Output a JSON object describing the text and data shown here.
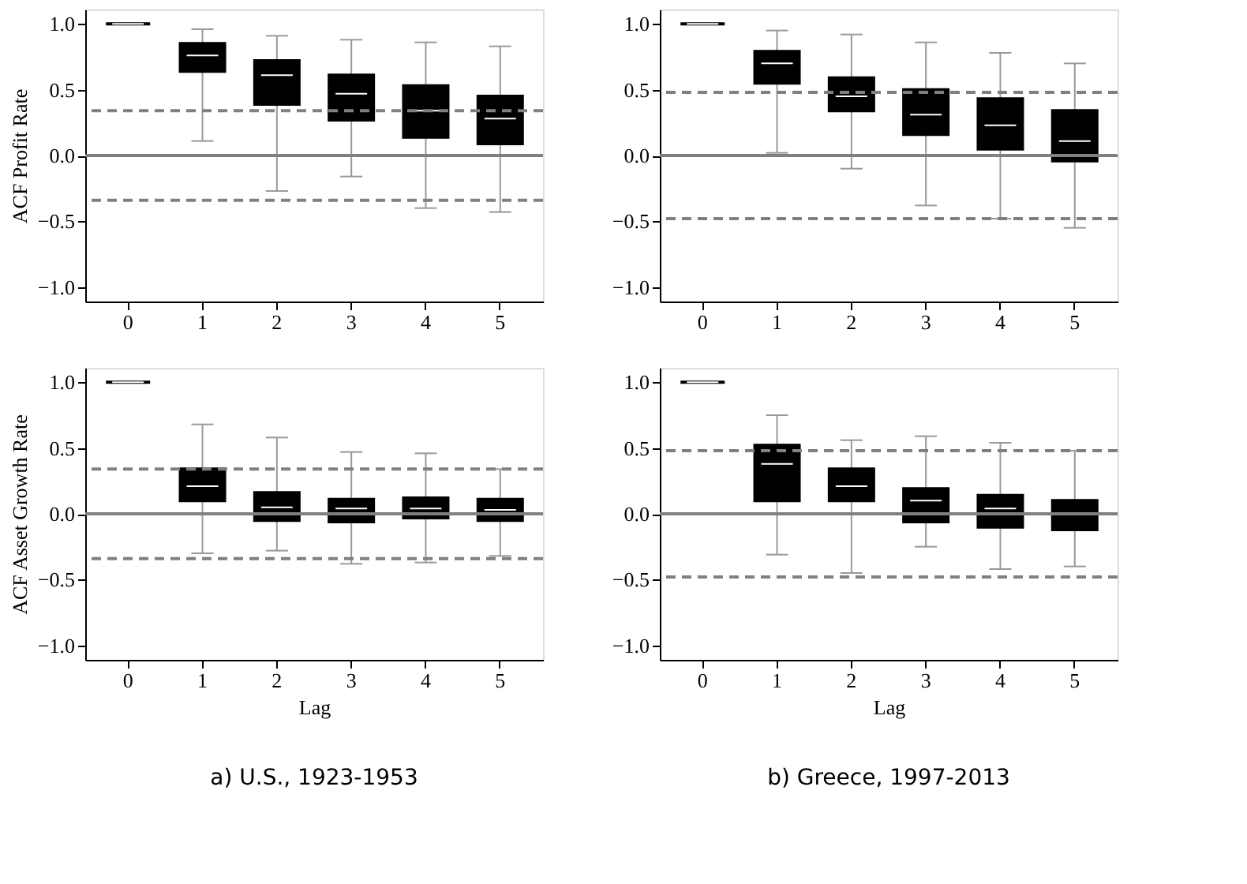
{
  "chart_data": [
    {
      "type": "box",
      "ylabel": "ACF Profit Rate",
      "categories": [
        "0",
        "1",
        "2",
        "3",
        "4",
        "5"
      ],
      "color": "#000000",
      "ylim": [
        -1.11,
        1.11
      ],
      "yticks": [
        {
          "value": -1,
          "label": "−1.0"
        },
        {
          "value": -0.5,
          "label": "−0.5"
        },
        {
          "value": 0,
          "label": "0.0"
        },
        {
          "value": 0.5,
          "label": "0.5"
        },
        {
          "value": 1,
          "label": "1.0"
        }
      ],
      "grid": false,
      "boxes": [
        {
          "low": 1,
          "q1": 1,
          "median": 1,
          "q3": 1,
          "high": 1
        },
        {
          "low": 0.11,
          "q1": 0.64,
          "median": 0.76,
          "q3": 0.85,
          "high": 0.96
        },
        {
          "low": -0.27,
          "q1": 0.39,
          "median": 0.61,
          "q3": 0.72,
          "high": 0.91
        },
        {
          "low": -0.16,
          "q1": 0.27,
          "median": 0.47,
          "q3": 0.61,
          "high": 0.88
        },
        {
          "low": -0.4,
          "q1": 0.14,
          "median": 0.34,
          "q3": 0.53,
          "high": 0.86
        },
        {
          "low": -0.43,
          "q1": 0.09,
          "median": 0.28,
          "q3": 0.45,
          "high": 0.83
        }
      ],
      "ref_lines": [
        {
          "axis": "y",
          "value": 0,
          "line_style": "solid",
          "color": "#808080"
        },
        {
          "axis": "y",
          "value": 0.34,
          "line_style": "dashed",
          "color": "#808080"
        },
        {
          "axis": "y",
          "value": -0.34,
          "line_style": "dashed",
          "color": "#808080"
        }
      ]
    },
    {
      "type": "box",
      "categories": [
        "0",
        "1",
        "2",
        "3",
        "4",
        "5"
      ],
      "color": "#000000",
      "ylim": [
        -1.11,
        1.11
      ],
      "yticks": [
        {
          "value": -1,
          "label": "−1.0"
        },
        {
          "value": -0.5,
          "label": "−0.5"
        },
        {
          "value": 0,
          "label": "0.0"
        },
        {
          "value": 0.5,
          "label": "0.5"
        },
        {
          "value": 1,
          "label": "1.0"
        }
      ],
      "grid": false,
      "boxes": [
        {
          "low": 1,
          "q1": 1,
          "median": 1,
          "q3": 1,
          "high": 1
        },
        {
          "low": 0.02,
          "q1": 0.55,
          "median": 0.7,
          "q3": 0.79,
          "high": 0.95
        },
        {
          "low": -0.1,
          "q1": 0.34,
          "median": 0.45,
          "q3": 0.59,
          "high": 0.92
        },
        {
          "low": -0.38,
          "q1": 0.16,
          "median": 0.31,
          "q3": 0.5,
          "high": 0.86
        },
        {
          "low": -0.48,
          "q1": 0.05,
          "median": 0.23,
          "q3": 0.43,
          "high": 0.78
        },
        {
          "low": -0.55,
          "q1": -0.04,
          "median": 0.11,
          "q3": 0.34,
          "high": 0.7
        }
      ],
      "ref_lines": [
        {
          "axis": "y",
          "value": 0,
          "line_style": "solid",
          "color": "#808080"
        },
        {
          "axis": "y",
          "value": 0.48,
          "line_style": "dashed",
          "color": "#808080"
        },
        {
          "axis": "y",
          "value": -0.48,
          "line_style": "dashed",
          "color": "#808080"
        }
      ]
    },
    {
      "type": "box",
      "ylabel": "ACF Asset Growth Rate",
      "xlabel": "Lag",
      "categories": [
        "0",
        "1",
        "2",
        "3",
        "4",
        "5"
      ],
      "color": "#000000",
      "ylim": [
        -1.11,
        1.11
      ],
      "yticks": [
        {
          "value": -1,
          "label": "−1.0"
        },
        {
          "value": -0.5,
          "label": "−0.5"
        },
        {
          "value": 0,
          "label": "0.0"
        },
        {
          "value": 0.5,
          "label": "0.5"
        },
        {
          "value": 1,
          "label": "1.0"
        }
      ],
      "grid": false,
      "boxes": [
        {
          "low": 1,
          "q1": 1,
          "median": 1,
          "q3": 1,
          "high": 1
        },
        {
          "low": -0.3,
          "q1": 0.1,
          "median": 0.21,
          "q3": 0.34,
          "high": 0.68
        },
        {
          "low": -0.28,
          "q1": -0.05,
          "median": 0.05,
          "q3": 0.16,
          "high": 0.58
        },
        {
          "low": -0.38,
          "q1": -0.06,
          "median": 0.04,
          "q3": 0.11,
          "high": 0.47
        },
        {
          "low": -0.37,
          "q1": -0.03,
          "median": 0.04,
          "q3": 0.12,
          "high": 0.46
        },
        {
          "low": -0.32,
          "q1": -0.05,
          "median": 0.03,
          "q3": 0.11,
          "high": 0.34
        }
      ],
      "ref_lines": [
        {
          "axis": "y",
          "value": 0,
          "line_style": "solid",
          "color": "#808080"
        },
        {
          "axis": "y",
          "value": 0.34,
          "line_style": "dashed",
          "color": "#808080"
        },
        {
          "axis": "y",
          "value": -0.34,
          "line_style": "dashed",
          "color": "#808080"
        }
      ],
      "annotations": [
        "a) U.S., 1923-1953"
      ]
    },
    {
      "type": "box",
      "xlabel": "Lag",
      "categories": [
        "0",
        "1",
        "2",
        "3",
        "4",
        "5"
      ],
      "color": "#000000",
      "ylim": [
        -1.11,
        1.11
      ],
      "yticks": [
        {
          "value": -1,
          "label": "−1.0"
        },
        {
          "value": -0.5,
          "label": "−0.5"
        },
        {
          "value": 0,
          "label": "0.0"
        },
        {
          "value": 0.5,
          "label": "0.5"
        },
        {
          "value": 1,
          "label": "1.0"
        }
      ],
      "grid": false,
      "boxes": [
        {
          "low": 1,
          "q1": 1,
          "median": 1,
          "q3": 1,
          "high": 1
        },
        {
          "low": -0.31,
          "q1": 0.1,
          "median": 0.38,
          "q3": 0.52,
          "high": 0.75
        },
        {
          "low": -0.45,
          "q1": 0.1,
          "median": 0.21,
          "q3": 0.34,
          "high": 0.56
        },
        {
          "low": -0.25,
          "q1": -0.06,
          "median": 0.1,
          "q3": 0.19,
          "high": 0.59
        },
        {
          "low": -0.42,
          "q1": -0.1,
          "median": 0.04,
          "q3": 0.14,
          "high": 0.54
        },
        {
          "low": -0.4,
          "q1": -0.12,
          "median": 0.0,
          "q3": 0.1,
          "high": 0.48
        }
      ],
      "ref_lines": [
        {
          "axis": "y",
          "value": 0,
          "line_style": "solid",
          "color": "#808080"
        },
        {
          "axis": "y",
          "value": 0.48,
          "line_style": "dashed",
          "color": "#808080"
        },
        {
          "axis": "y",
          "value": -0.48,
          "line_style": "dashed",
          "color": "#808080"
        }
      ],
      "annotations": [
        "b) Greece, 1997-2013"
      ]
    }
  ]
}
